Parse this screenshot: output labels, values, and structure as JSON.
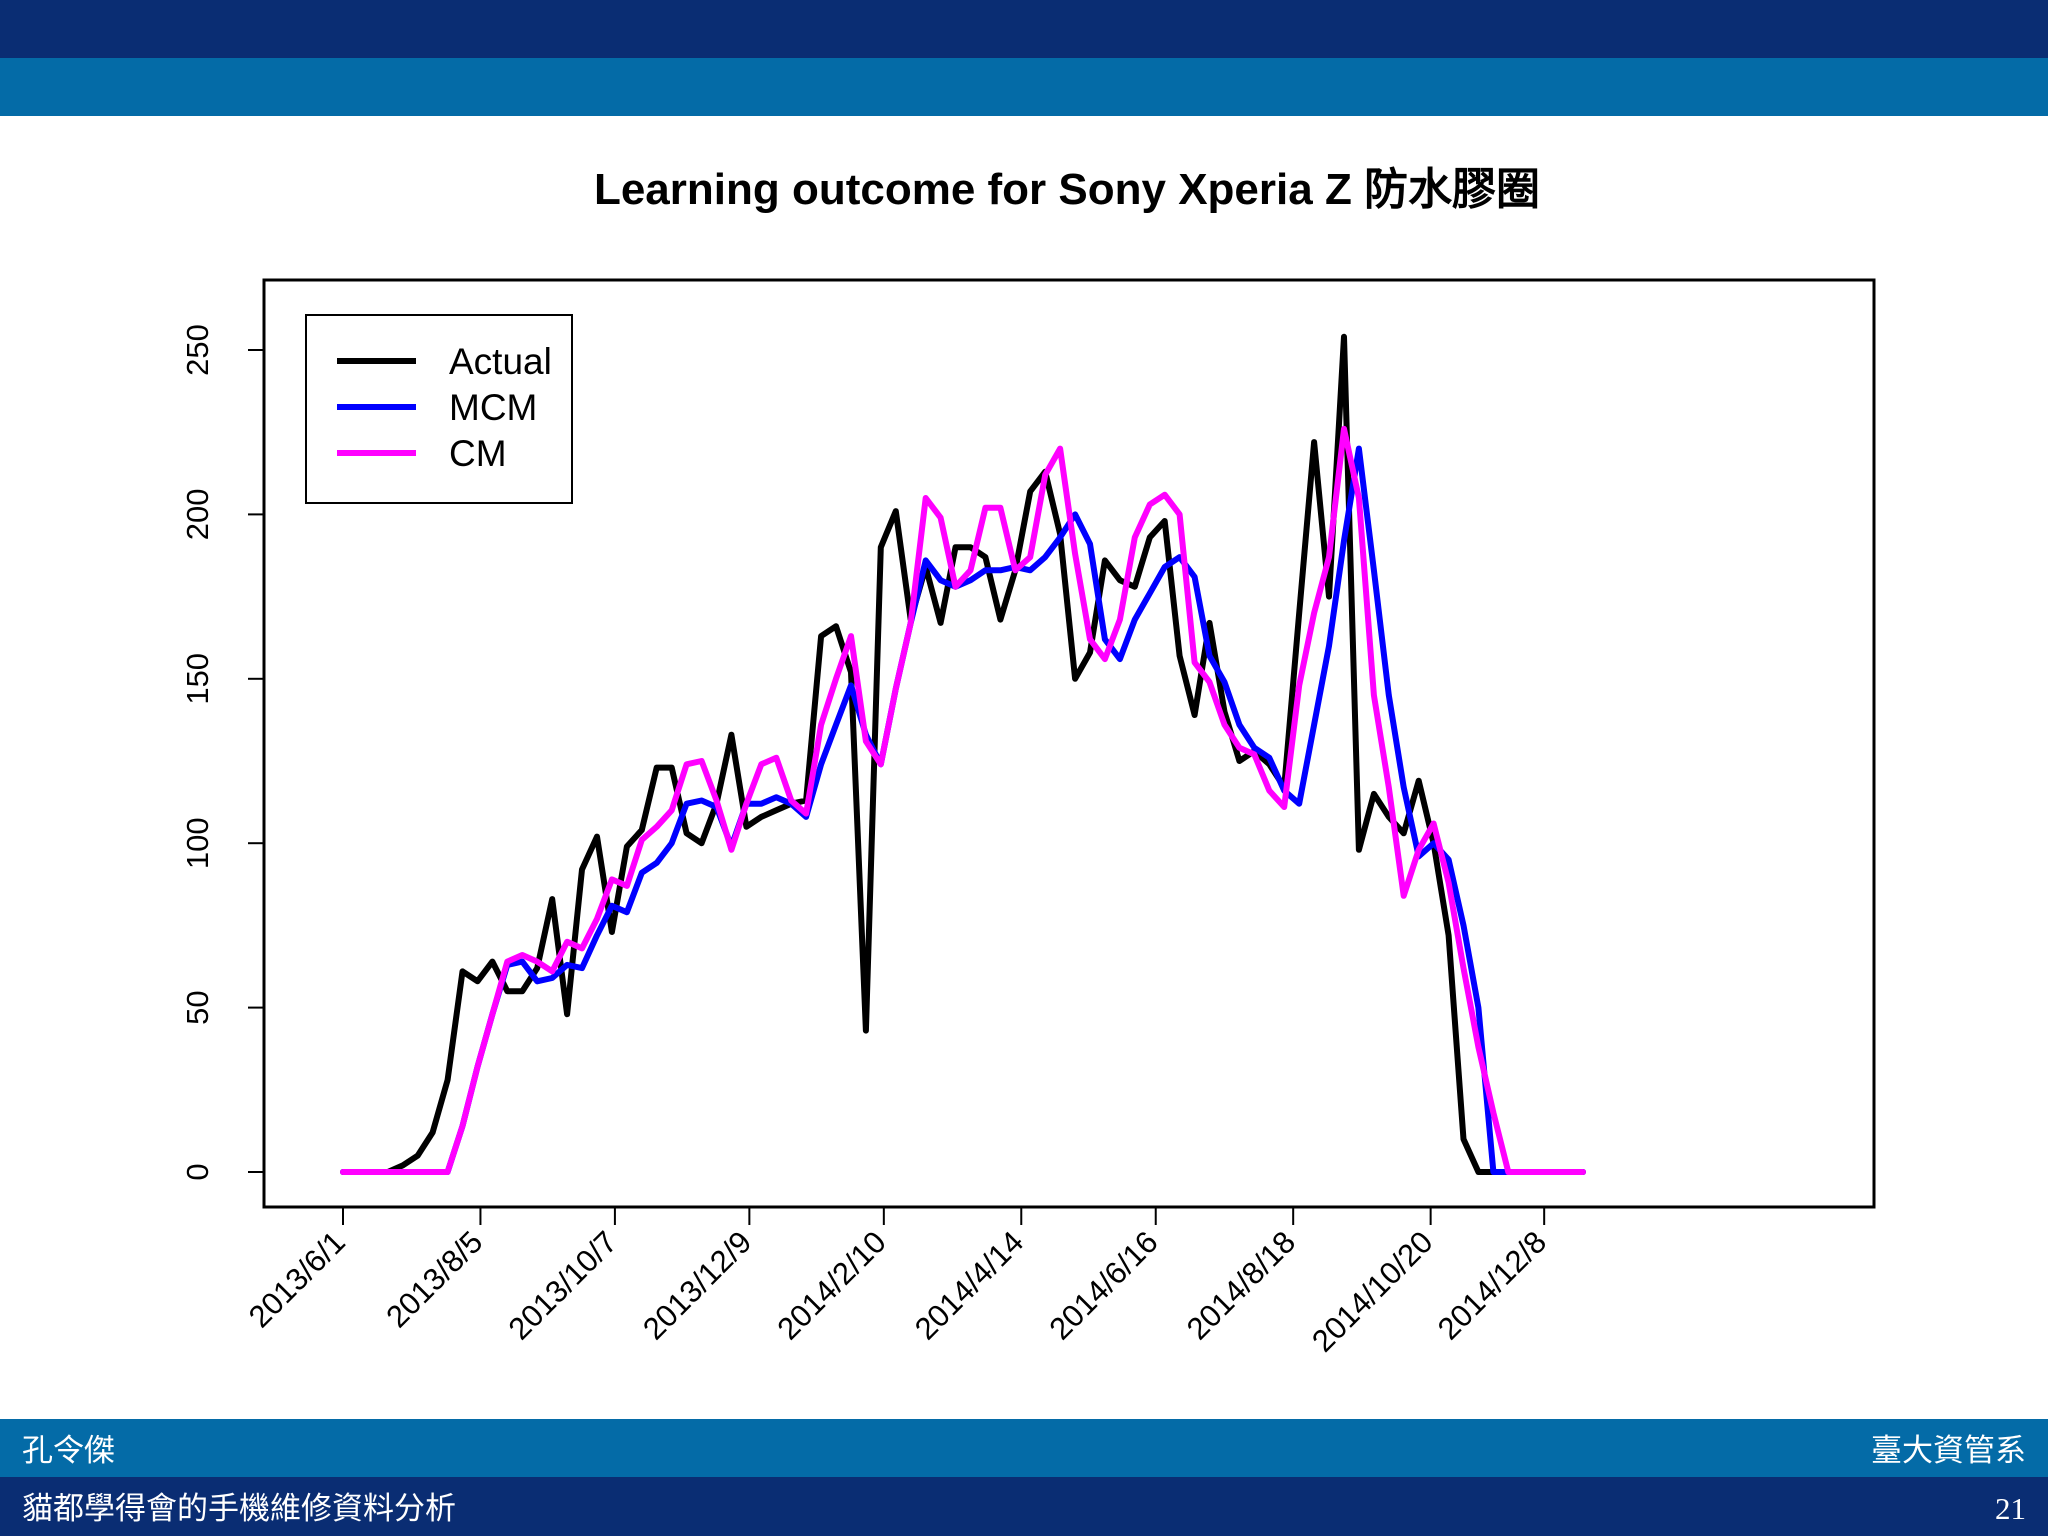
{
  "header": {
    "band_colors": [
      "#0a2d73",
      "#046ba7"
    ]
  },
  "footer": {
    "author": "孔令傑",
    "department": "臺大資管系",
    "talk_title": "貓都學得會的手機維修資料分析",
    "page_number": "21"
  },
  "chart_data": {
    "type": "line",
    "title": "Learning outcome for Sony Xperia Z 防水膠圈",
    "xlabel": "",
    "ylabel": "",
    "x_tick_labels": [
      "2013/6/1",
      "2013/8/5",
      "2013/10/7",
      "2013/12/9",
      "2014/2/10",
      "2014/4/14",
      "2014/6/16",
      "2014/8/18",
      "2014/10/20",
      "2014/12/8"
    ],
    "y_ticks": [
      0,
      50,
      100,
      150,
      200,
      250
    ],
    "ylim": [
      0,
      260
    ],
    "legend_position": "top-left",
    "series": [
      {
        "name": "Actual",
        "color": "#000000",
        "points": [
          [
            0,
            0
          ],
          [
            1,
            0
          ],
          [
            2,
            0
          ],
          [
            3,
            0
          ],
          [
            4,
            2
          ],
          [
            5,
            5
          ],
          [
            6,
            12
          ],
          [
            7,
            28
          ],
          [
            8,
            61
          ],
          [
            9,
            58
          ],
          [
            10,
            64
          ],
          [
            11,
            55
          ],
          [
            12,
            55
          ],
          [
            13,
            62
          ],
          [
            14,
            83
          ],
          [
            15,
            48
          ],
          [
            16,
            92
          ],
          [
            17,
            102
          ],
          [
            18,
            73
          ],
          [
            19,
            99
          ],
          [
            20,
            104
          ],
          [
            21,
            123
          ],
          [
            22,
            123
          ],
          [
            23,
            103
          ],
          [
            24,
            100
          ],
          [
            25,
            112
          ],
          [
            26,
            133
          ],
          [
            27,
            105
          ],
          [
            28,
            108
          ],
          [
            29,
            110
          ],
          [
            30,
            112
          ],
          [
            31,
            113
          ],
          [
            32,
            163
          ],
          [
            33,
            166
          ],
          [
            34,
            152
          ],
          [
            35,
            43
          ],
          [
            36,
            190
          ],
          [
            37,
            201
          ],
          [
            38,
            168
          ],
          [
            39,
            184
          ],
          [
            40,
            167
          ],
          [
            41,
            190
          ],
          [
            42,
            190
          ],
          [
            43,
            187
          ],
          [
            44,
            168
          ],
          [
            45,
            183
          ],
          [
            46,
            207
          ],
          [
            47,
            213
          ],
          [
            48,
            194
          ],
          [
            49,
            150
          ],
          [
            50,
            158
          ],
          [
            51,
            186
          ],
          [
            52,
            180
          ],
          [
            53,
            178
          ],
          [
            54,
            193
          ],
          [
            55,
            198
          ],
          [
            56,
            157
          ],
          [
            57,
            139
          ],
          [
            58,
            167
          ],
          [
            59,
            140
          ],
          [
            60,
            125
          ],
          [
            61,
            128
          ],
          [
            62,
            124
          ],
          [
            63,
            117
          ],
          [
            64,
            170
          ],
          [
            65,
            222
          ],
          [
            66,
            175
          ],
          [
            67,
            254
          ],
          [
            68,
            98
          ],
          [
            69,
            115
          ],
          [
            70,
            108
          ],
          [
            71,
            103
          ],
          [
            72,
            119
          ],
          [
            73,
            100
          ],
          [
            74,
            72
          ],
          [
            75,
            10
          ],
          [
            76,
            0
          ],
          [
            77,
            0
          ],
          [
            78,
            0
          ],
          [
            79,
            0
          ],
          [
            80,
            0
          ],
          [
            81,
            0
          ],
          [
            82,
            0
          ],
          [
            83,
            0
          ]
        ]
      },
      {
        "name": "MCM",
        "color": "#0000ff",
        "points": [
          [
            0,
            0
          ],
          [
            1,
            0
          ],
          [
            2,
            0
          ],
          [
            3,
            0
          ],
          [
            4,
            0
          ],
          [
            5,
            0
          ],
          [
            6,
            0
          ],
          [
            7,
            0
          ],
          [
            8,
            14
          ],
          [
            9,
            32
          ],
          [
            10,
            48
          ],
          [
            11,
            63
          ],
          [
            12,
            64
          ],
          [
            13,
            58
          ],
          [
            14,
            59
          ],
          [
            15,
            63
          ],
          [
            16,
            62
          ],
          [
            17,
            72
          ],
          [
            18,
            81
          ],
          [
            19,
            79
          ],
          [
            20,
            91
          ],
          [
            21,
            94
          ],
          [
            22,
            100
          ],
          [
            23,
            112
          ],
          [
            24,
            113
          ],
          [
            25,
            111
          ],
          [
            26,
            99
          ],
          [
            27,
            112
          ],
          [
            28,
            112
          ],
          [
            29,
            114
          ],
          [
            30,
            112
          ],
          [
            31,
            108
          ],
          [
            32,
            124
          ],
          [
            33,
            136
          ],
          [
            34,
            148
          ],
          [
            35,
            133
          ],
          [
            36,
            124
          ],
          [
            37,
            147
          ],
          [
            38,
            167
          ],
          [
            39,
            186
          ],
          [
            40,
            180
          ],
          [
            41,
            178
          ],
          [
            42,
            180
          ],
          [
            43,
            183
          ],
          [
            44,
            183
          ],
          [
            45,
            184
          ],
          [
            46,
            183
          ],
          [
            47,
            187
          ],
          [
            48,
            193
          ],
          [
            49,
            200
          ],
          [
            50,
            191
          ],
          [
            51,
            162
          ],
          [
            52,
            156
          ],
          [
            53,
            168
          ],
          [
            54,
            176
          ],
          [
            55,
            184
          ],
          [
            56,
            187
          ],
          [
            57,
            181
          ],
          [
            58,
            157
          ],
          [
            59,
            149
          ],
          [
            60,
            136
          ],
          [
            61,
            129
          ],
          [
            62,
            126
          ],
          [
            63,
            116
          ],
          [
            64,
            112
          ],
          [
            65,
            136
          ],
          [
            66,
            160
          ],
          [
            67,
            192
          ],
          [
            68,
            220
          ],
          [
            69,
            183
          ],
          [
            70,
            145
          ],
          [
            71,
            117
          ],
          [
            72,
            96
          ],
          [
            73,
            100
          ],
          [
            74,
            95
          ],
          [
            75,
            75
          ],
          [
            76,
            50
          ],
          [
            77,
            0
          ],
          [
            78,
            0
          ],
          [
            79,
            0
          ],
          [
            80,
            0
          ],
          [
            81,
            0
          ],
          [
            82,
            0
          ],
          [
            83,
            0
          ]
        ]
      },
      {
        "name": "CM",
        "color": "#ff00ff",
        "points": [
          [
            0,
            0
          ],
          [
            1,
            0
          ],
          [
            2,
            0
          ],
          [
            3,
            0
          ],
          [
            4,
            0
          ],
          [
            5,
            0
          ],
          [
            6,
            0
          ],
          [
            7,
            0
          ],
          [
            8,
            14
          ],
          [
            9,
            32
          ],
          [
            10,
            48
          ],
          [
            11,
            64
          ],
          [
            12,
            66
          ],
          [
            13,
            64
          ],
          [
            14,
            61
          ],
          [
            15,
            70
          ],
          [
            16,
            68
          ],
          [
            17,
            77
          ],
          [
            18,
            89
          ],
          [
            19,
            87
          ],
          [
            20,
            101
          ],
          [
            21,
            105
          ],
          [
            22,
            110
          ],
          [
            23,
            124
          ],
          [
            24,
            125
          ],
          [
            25,
            113
          ],
          [
            26,
            98
          ],
          [
            27,
            112
          ],
          [
            28,
            124
          ],
          [
            29,
            126
          ],
          [
            30,
            113
          ],
          [
            31,
            109
          ],
          [
            32,
            136
          ],
          [
            33,
            150
          ],
          [
            34,
            163
          ],
          [
            35,
            131
          ],
          [
            36,
            124
          ],
          [
            37,
            147
          ],
          [
            38,
            167
          ],
          [
            39,
            205
          ],
          [
            40,
            199
          ],
          [
            41,
            178
          ],
          [
            42,
            183
          ],
          [
            43,
            202
          ],
          [
            44,
            202
          ],
          [
            45,
            183
          ],
          [
            46,
            187
          ],
          [
            47,
            212
          ],
          [
            48,
            220
          ],
          [
            49,
            188
          ],
          [
            50,
            162
          ],
          [
            51,
            156
          ],
          [
            52,
            168
          ],
          [
            53,
            193
          ],
          [
            54,
            203
          ],
          [
            55,
            206
          ],
          [
            56,
            200
          ],
          [
            57,
            155
          ],
          [
            58,
            149
          ],
          [
            59,
            136
          ],
          [
            60,
            129
          ],
          [
            61,
            127
          ],
          [
            62,
            116
          ],
          [
            63,
            111
          ],
          [
            64,
            148
          ],
          [
            65,
            170
          ],
          [
            66,
            187
          ],
          [
            67,
            226
          ],
          [
            68,
            205
          ],
          [
            69,
            145
          ],
          [
            70,
            117
          ],
          [
            71,
            84
          ],
          [
            72,
            98
          ],
          [
            73,
            106
          ],
          [
            74,
            88
          ],
          [
            75,
            62
          ],
          [
            76,
            38
          ],
          [
            77,
            18
          ],
          [
            78,
            0
          ],
          [
            79,
            0
          ],
          [
            80,
            0
          ],
          [
            81,
            0
          ],
          [
            82,
            0
          ],
          [
            83,
            0
          ]
        ]
      }
    ]
  }
}
